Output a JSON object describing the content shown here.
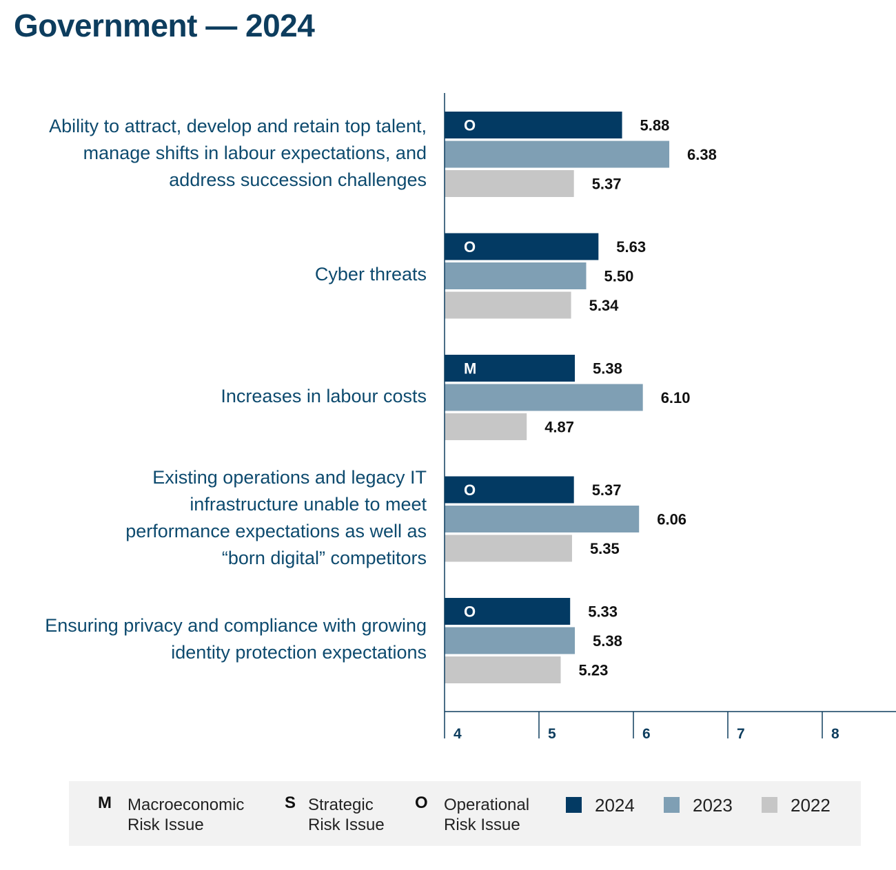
{
  "title": "Government — 2024",
  "colors": {
    "y2024": "#033a63",
    "y2023": "#7f9fb4",
    "y2022": "#c6c6c6",
    "axis": "#0d3d5e",
    "label": "#0d4a6e"
  },
  "chart_data": {
    "type": "bar",
    "orientation": "horizontal",
    "title": "Government — 2024",
    "xlim": [
      4,
      8.8
    ],
    "xticks": [
      "4",
      "5",
      "6",
      "7",
      "8"
    ],
    "xlabel": "",
    "ylabel": "",
    "categories": [
      "Ability to attract, develop and retain top talent, manage shifts in labour expectations, and address succession challenges",
      "Cyber threats",
      "Increases in labour costs",
      "Existing operations and legacy IT infrastructure unable to meet performance expectations as well as “born digital” competitors",
      "Ensuring privacy and compliance with growing identity protection expectations"
    ],
    "category_lines": [
      [
        "Ability to attract, develop and retain top talent,",
        "manage shifts in labour expectations, and",
        "address succession challenges"
      ],
      [
        "Cyber threats"
      ],
      [
        "Increases in labour costs"
      ],
      [
        "Existing operations and legacy IT",
        "infrastructure unable to meet",
        "performance expectations as well as",
        "“born digital” competitors"
      ],
      [
        "Ensuring privacy and compliance with growing",
        "identity protection expectations"
      ]
    ],
    "risk_type": [
      "O",
      "O",
      "M",
      "O",
      "O"
    ],
    "series": [
      {
        "name": "2024",
        "values": [
          5.88,
          5.63,
          5.38,
          5.37,
          5.33
        ],
        "labels": [
          "5.88",
          "5.63",
          "5.38",
          "5.37",
          "5.33"
        ]
      },
      {
        "name": "2023",
        "values": [
          6.38,
          5.5,
          6.1,
          6.06,
          5.38
        ],
        "labels": [
          "6.38",
          "5.50",
          "6.10",
          "6.06",
          "5.38"
        ]
      },
      {
        "name": "2022",
        "values": [
          5.37,
          5.34,
          4.87,
          5.35,
          5.23
        ],
        "labels": [
          "5.37",
          "5.34",
          "4.87",
          "5.35",
          "5.23"
        ]
      }
    ]
  },
  "legend": {
    "m": {
      "key": "M",
      "line1": "Macroeconomic",
      "line2": "Risk Issue"
    },
    "s": {
      "key": "S",
      "line1": "Strategic",
      "line2": "Risk Issue"
    },
    "o": {
      "key": "O",
      "line1": "Operational",
      "line2": "Risk Issue"
    },
    "years": [
      "2024",
      "2023",
      "2022"
    ]
  }
}
